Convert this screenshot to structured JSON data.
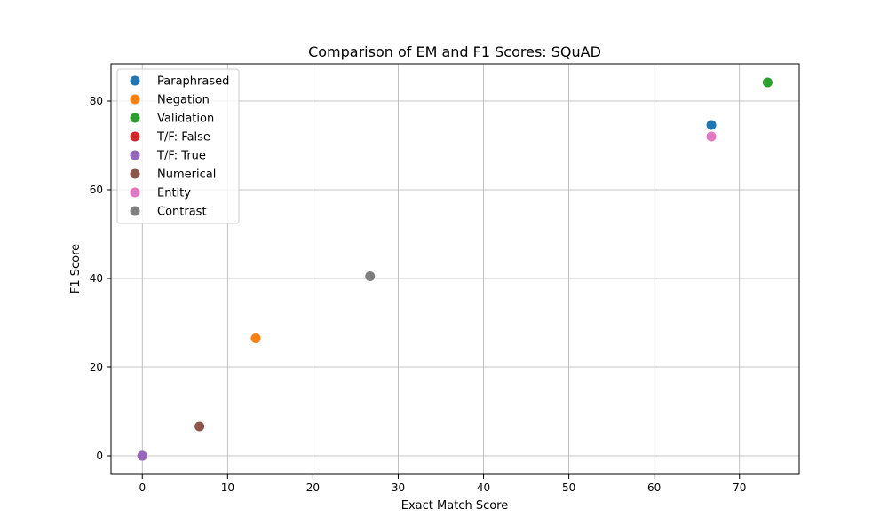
{
  "chart_data": {
    "type": "scatter",
    "title": "Comparison of EM and F1 Scores: SQuAD",
    "xlabel": "Exact Match Score",
    "ylabel": "F1 Score",
    "xlim": [
      -3.67,
      77.0
    ],
    "ylim": [
      -4.2,
      88.4
    ],
    "xticks": [
      0,
      10,
      20,
      30,
      40,
      50,
      60,
      70
    ],
    "yticks": [
      0,
      20,
      40,
      60,
      80
    ],
    "grid": true,
    "legend_position": "top-left",
    "series": [
      {
        "name": "Paraphrased",
        "color": "#1f77b4",
        "points": [
          {
            "x": 66.7,
            "y": 74.6
          }
        ]
      },
      {
        "name": "Negation",
        "color": "#ff7f0e",
        "points": [
          {
            "x": 13.3,
            "y": 26.5
          }
        ]
      },
      {
        "name": "Validation",
        "color": "#2ca02c",
        "points": [
          {
            "x": 73.3,
            "y": 84.2
          }
        ]
      },
      {
        "name": "T/F: False",
        "color": "#d62728",
        "points": [
          {
            "x": 0.0,
            "y": 0.0
          }
        ]
      },
      {
        "name": "T/F: True",
        "color": "#9467bd",
        "points": [
          {
            "x": 0.0,
            "y": 0.0
          }
        ]
      },
      {
        "name": "Numerical",
        "color": "#8c564b",
        "points": [
          {
            "x": 6.7,
            "y": 6.6
          }
        ]
      },
      {
        "name": "Entity",
        "color": "#e377c2",
        "points": [
          {
            "x": 66.7,
            "y": 72.0
          }
        ]
      },
      {
        "name": "Contrast",
        "color": "#7f7f7f",
        "points": [
          {
            "x": 26.7,
            "y": 40.5
          }
        ]
      }
    ]
  }
}
